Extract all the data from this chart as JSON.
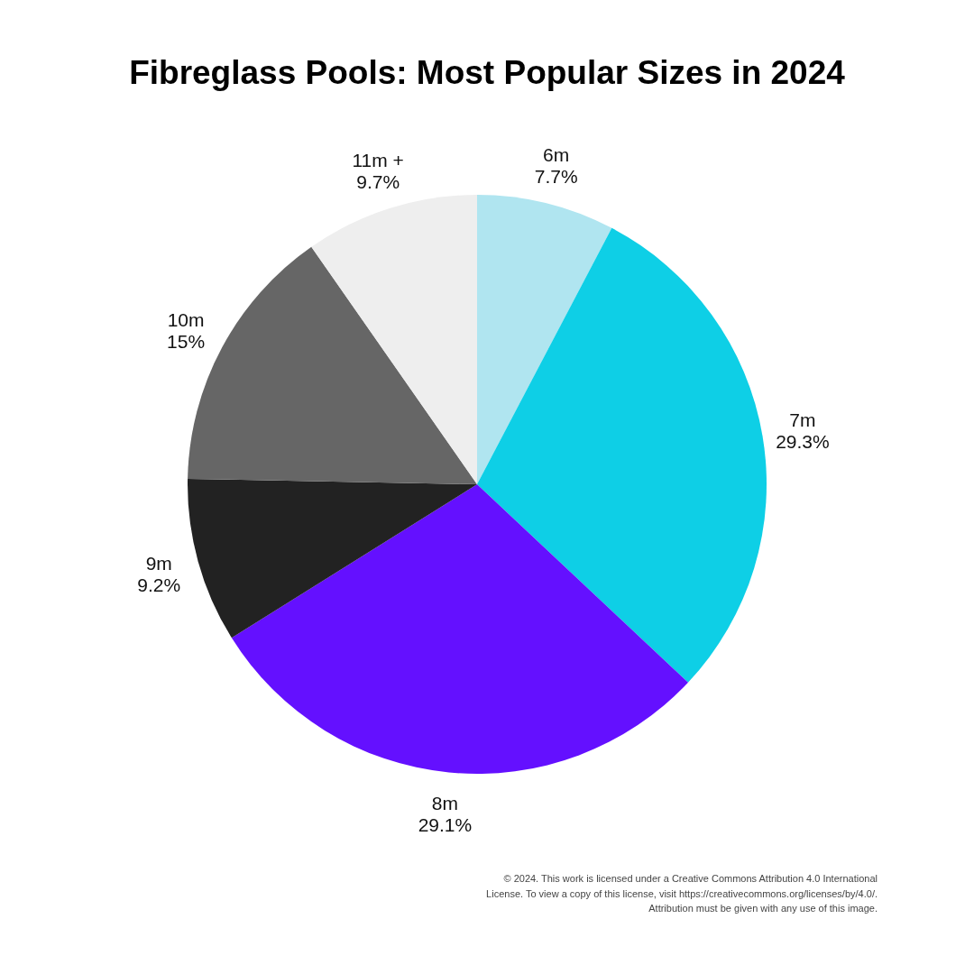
{
  "chart_data": {
    "type": "pie",
    "title": "Fibreglass Pools: Most Popular Sizes in 2024",
    "categories": [
      "6m",
      "7m",
      "8m",
      "9m",
      "10m",
      "11m +"
    ],
    "values": [
      7.7,
      29.3,
      29.1,
      9.2,
      15,
      9.7
    ],
    "colors": [
      "#b0e5f0",
      "#0ecfe6",
      "#6410ff",
      "#222222",
      "#666666",
      "#eeeeee"
    ],
    "value_labels": [
      "7.7%",
      "29.3%",
      "29.1%",
      "9.2%",
      "15%",
      "9.7%"
    ],
    "annotations": [
      "© 2024. This work is licensed under a Creative Commons Attribution 4.0 International",
      "License. To view a copy of this license, visit https://creativecommons.org/licenses/by/4.0/.",
      "Attribution must be given with any use of this image."
    ]
  }
}
